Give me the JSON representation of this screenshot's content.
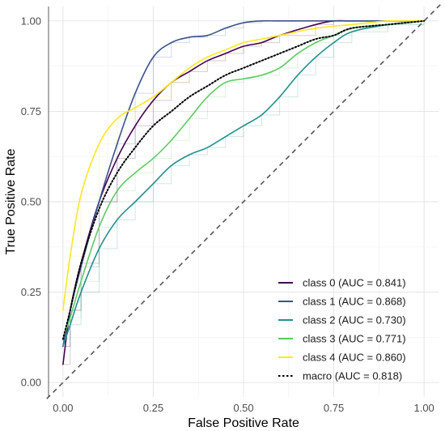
{
  "chart_data": {
    "type": "line",
    "title": "",
    "xlabel": "False Positive Rate",
    "ylabel": "True Positive Rate",
    "xlim": [
      -0.04,
      1.04
    ],
    "ylim": [
      -0.04,
      1.04
    ],
    "x_ticks": [
      0.0,
      0.25,
      0.5,
      0.75,
      1.0
    ],
    "y_ticks": [
      0.0,
      0.25,
      0.5,
      0.75,
      1.0
    ],
    "x_tick_labels": [
      "0.00",
      "0.25",
      "0.50",
      "0.75",
      "1.00"
    ],
    "y_tick_labels": [
      "0.00",
      "0.25",
      "0.50",
      "0.75",
      "1.00"
    ],
    "grid": true,
    "legend_position": "bottom-right",
    "reference_line": {
      "x": [
        0,
        1
      ],
      "y": [
        0,
        1
      ],
      "style": "dashed",
      "color": "#555555"
    },
    "series": [
      {
        "name": "class 0 (AUC = 0.841)",
        "color": "#440154",
        "style": "solid",
        "x": [
          0.0,
          0.02,
          0.05,
          0.1,
          0.15,
          0.2,
          0.25,
          0.3,
          0.35,
          0.4,
          0.45,
          0.5,
          0.55,
          0.6,
          0.7,
          0.75,
          0.8,
          0.9,
          1.0
        ],
        "y": [
          0.05,
          0.2,
          0.33,
          0.5,
          0.62,
          0.71,
          0.78,
          0.83,
          0.86,
          0.89,
          0.91,
          0.93,
          0.94,
          0.96,
          0.99,
          1.0,
          1.0,
          1.0,
          1.0
        ]
      },
      {
        "name": "class 1 (AUC = 0.868)",
        "color": "#3b528b",
        "style": "solid",
        "x": [
          0.0,
          0.02,
          0.05,
          0.1,
          0.15,
          0.2,
          0.25,
          0.3,
          0.35,
          0.4,
          0.45,
          0.5,
          0.55,
          0.6,
          0.7,
          0.8,
          0.9,
          1.0
        ],
        "y": [
          0.1,
          0.2,
          0.32,
          0.5,
          0.66,
          0.8,
          0.9,
          0.94,
          0.955,
          0.96,
          0.98,
          0.995,
          1.0,
          1.0,
          1.0,
          1.0,
          1.0,
          1.0
        ]
      },
      {
        "name": "class 2 (AUC = 0.730)",
        "color": "#21908d",
        "style": "solid",
        "x": [
          0.0,
          0.02,
          0.05,
          0.1,
          0.15,
          0.2,
          0.25,
          0.3,
          0.35,
          0.4,
          0.45,
          0.5,
          0.55,
          0.6,
          0.65,
          0.7,
          0.75,
          0.8,
          0.9,
          1.0
        ],
        "y": [
          0.1,
          0.16,
          0.25,
          0.37,
          0.45,
          0.5,
          0.55,
          0.6,
          0.63,
          0.65,
          0.68,
          0.71,
          0.74,
          0.79,
          0.85,
          0.9,
          0.94,
          0.97,
          0.99,
          1.0
        ]
      },
      {
        "name": "class 3 (AUC = 0.771)",
        "color": "#5ec962",
        "style": "solid",
        "x": [
          0.0,
          0.02,
          0.05,
          0.1,
          0.15,
          0.2,
          0.25,
          0.3,
          0.35,
          0.4,
          0.45,
          0.5,
          0.55,
          0.6,
          0.65,
          0.7,
          0.75,
          0.8,
          0.9,
          1.0
        ],
        "y": [
          0.12,
          0.18,
          0.28,
          0.43,
          0.53,
          0.58,
          0.62,
          0.67,
          0.73,
          0.79,
          0.83,
          0.84,
          0.85,
          0.87,
          0.91,
          0.94,
          0.96,
          0.98,
          0.99,
          1.0
        ]
      },
      {
        "name": "class 4 (AUC = 0.860)",
        "color": "#fde725",
        "style": "solid",
        "x": [
          0.0,
          0.02,
          0.05,
          0.1,
          0.15,
          0.2,
          0.25,
          0.3,
          0.35,
          0.4,
          0.45,
          0.5,
          0.55,
          0.6,
          0.7,
          0.8,
          0.9,
          1.0
        ],
        "y": [
          0.2,
          0.35,
          0.52,
          0.66,
          0.73,
          0.76,
          0.79,
          0.83,
          0.87,
          0.9,
          0.92,
          0.94,
          0.95,
          0.96,
          0.98,
          0.99,
          1.0,
          1.0
        ]
      },
      {
        "name": "macro (AUC = 0.818)",
        "color": "#000000",
        "style": "dotted",
        "x": [
          0.0,
          0.02,
          0.05,
          0.1,
          0.15,
          0.2,
          0.25,
          0.3,
          0.35,
          0.4,
          0.45,
          0.5,
          0.55,
          0.6,
          0.65,
          0.7,
          0.75,
          0.8,
          0.9,
          1.0
        ],
        "y": [
          0.12,
          0.2,
          0.33,
          0.48,
          0.58,
          0.65,
          0.71,
          0.75,
          0.79,
          0.82,
          0.85,
          0.87,
          0.89,
          0.91,
          0.93,
          0.95,
          0.96,
          0.98,
          0.99,
          1.0
        ]
      }
    ]
  }
}
